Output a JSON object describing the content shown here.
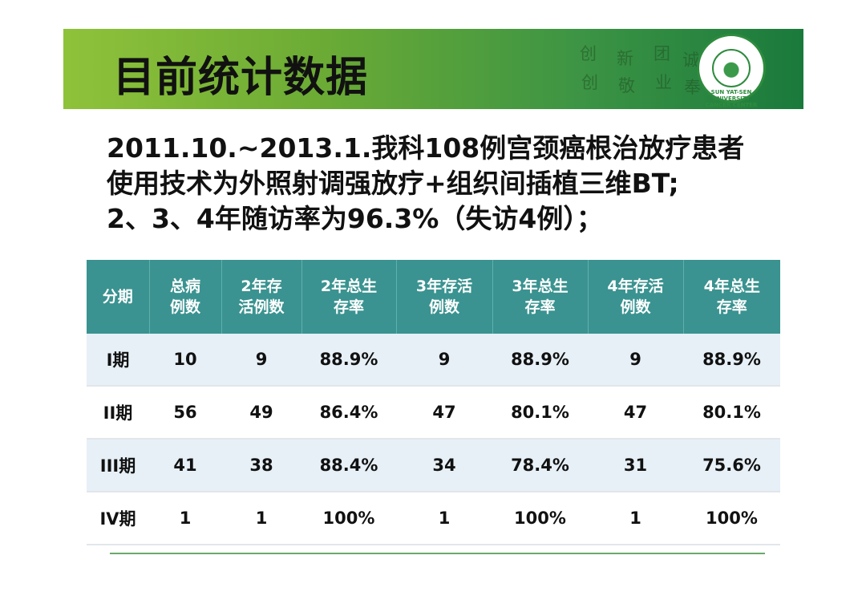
{
  "banner": {
    "title": "目前统计数据",
    "calligraphy": [
      "创",
      "新",
      "团",
      "诚",
      "创",
      "敬",
      "业",
      "奉"
    ],
    "logo_text": "SUN YAT-SEN UNIVERSITY CANCER CENTER",
    "colors": {
      "gradient_start": "#8fc23a",
      "gradient_end": "#1a7a3c"
    }
  },
  "summary": {
    "line1": "2011.10.~2013.1.我科108例宫颈癌根治放疗患者",
    "line2": "使用技术为外照射调强放疗+组织间插植三维BT;",
    "line3": "2、3、4年随访率为96.3%（失访4例）；"
  },
  "table": {
    "headers": [
      [
        "分期"
      ],
      [
        "总病",
        "例数"
      ],
      [
        "2年存",
        "活例数"
      ],
      [
        "2年总生",
        "存率"
      ],
      [
        "3年存活",
        "例数"
      ],
      [
        "3年总生",
        "存率"
      ],
      [
        "4年存活",
        "例数"
      ],
      [
        "4年总生",
        "存率"
      ]
    ],
    "rows": [
      [
        "I期",
        "10",
        "9",
        "88.9%",
        "9",
        "88.9%",
        "9",
        "88.9%"
      ],
      [
        "II期",
        "56",
        "49",
        "86.4%",
        "47",
        "80.1%",
        "47",
        "80.1%"
      ],
      [
        "III期",
        "41",
        "38",
        "88.4%",
        "34",
        "78.4%",
        "31",
        "75.6%"
      ],
      [
        "IV期",
        "1",
        "1",
        "100%",
        "1",
        "100%",
        "1",
        "100%"
      ]
    ],
    "colors": {
      "header_bg": "#3a9390",
      "row_alt_bg": "#e7f0f7"
    }
  }
}
